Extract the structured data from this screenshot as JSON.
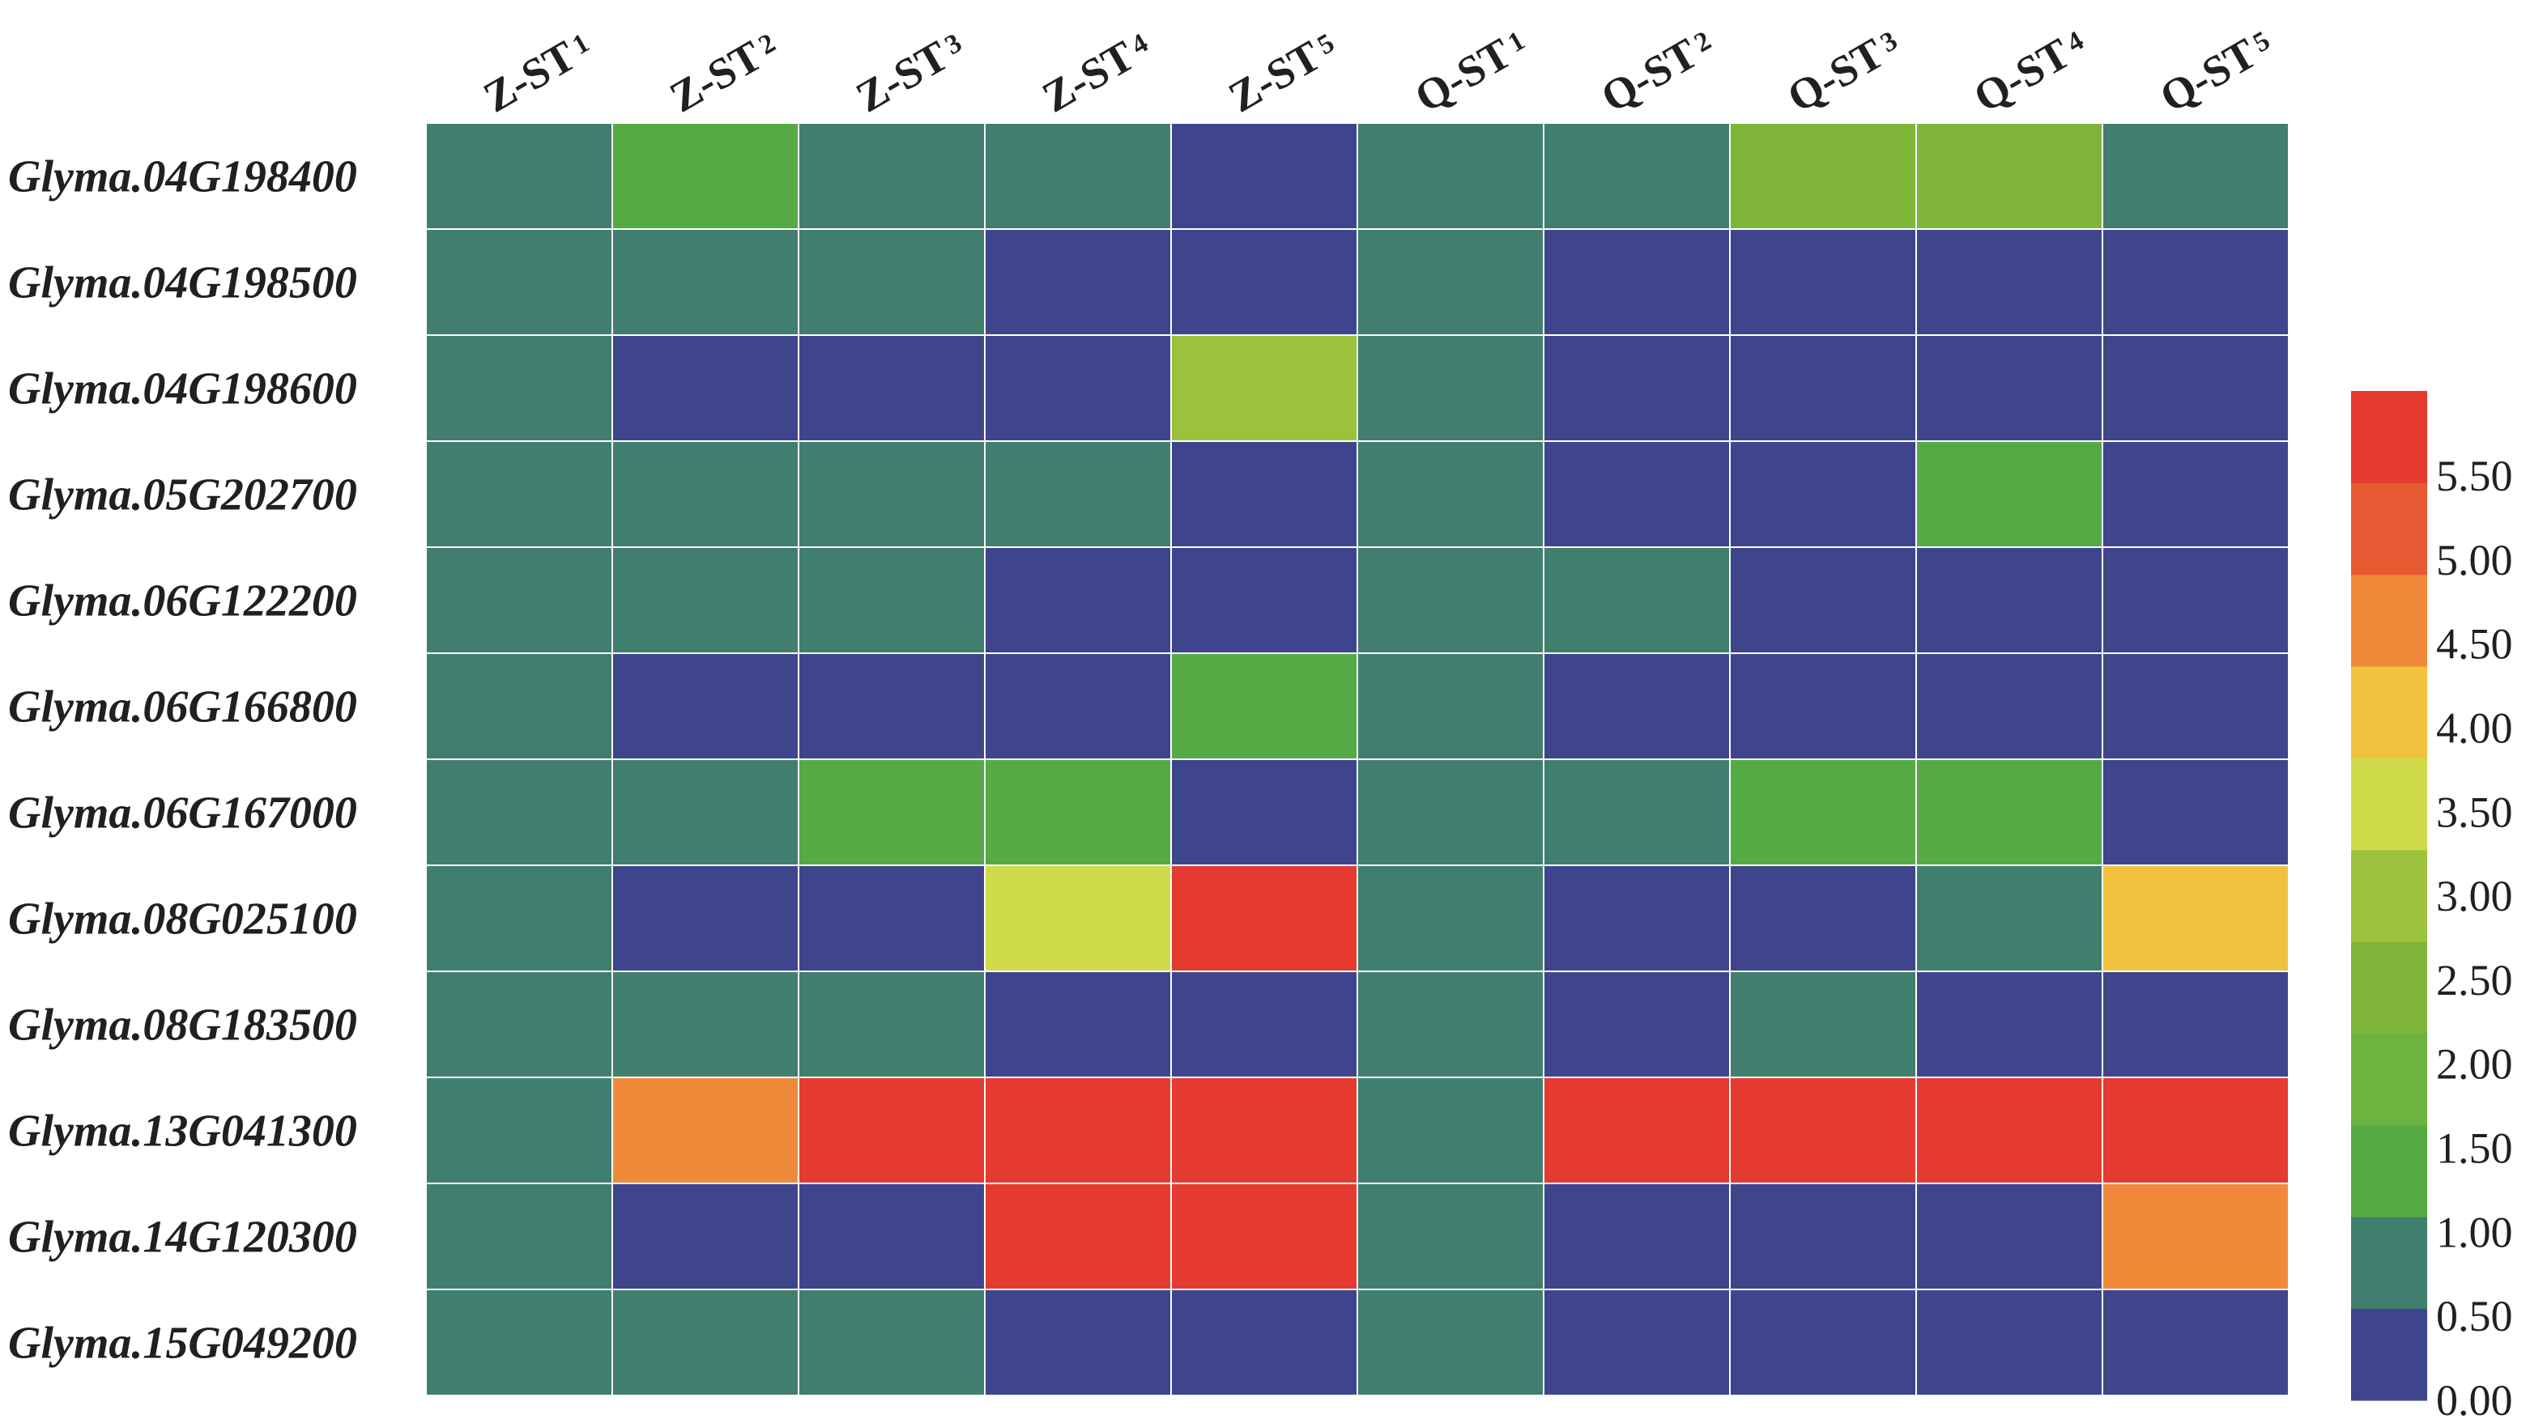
{
  "chart_data": {
    "type": "heatmap",
    "columns": [
      {
        "label": "Z-ST",
        "sub": "1"
      },
      {
        "label": "Z-ST",
        "sub": "2"
      },
      {
        "label": "Z-ST",
        "sub": "3"
      },
      {
        "label": "Z-ST",
        "sub": "4"
      },
      {
        "label": "Z-ST",
        "sub": "5"
      },
      {
        "label": "Q-ST",
        "sub": "1"
      },
      {
        "label": "Q-ST",
        "sub": "2"
      },
      {
        "label": "Q-ST",
        "sub": "3"
      },
      {
        "label": "Q-ST",
        "sub": "4"
      },
      {
        "label": "Q-ST",
        "sub": "5"
      }
    ],
    "rows": [
      "Glyma.04G198400",
      "Glyma.04G198500",
      "Glyma.04G198600",
      "Glyma.05G202700",
      "Glyma.06G122200",
      "Glyma.06G166800",
      "Glyma.06G167000",
      "Glyma.08G025100",
      "Glyma.08G183500",
      "Glyma.13G041300",
      "Glyma.14G120300",
      "Glyma.15G049200"
    ],
    "values": [
      [
        1.0,
        1.8,
        1.0,
        1.0,
        0.3,
        1.0,
        1.0,
        2.5,
        2.5,
        1.0
      ],
      [
        1.0,
        1.0,
        1.0,
        0.3,
        0.3,
        1.0,
        0.3,
        0.3,
        0.3,
        0.3
      ],
      [
        1.0,
        0.3,
        0.3,
        0.3,
        3.2,
        1.0,
        0.3,
        0.3,
        0.3,
        0.3
      ],
      [
        1.0,
        1.0,
        1.0,
        1.0,
        0.3,
        1.0,
        0.3,
        0.3,
        1.8,
        0.3
      ],
      [
        1.0,
        1.0,
        1.0,
        0.3,
        0.3,
        1.0,
        1.0,
        0.3,
        0.3,
        0.3
      ],
      [
        1.0,
        0.3,
        0.3,
        0.3,
        1.8,
        1.0,
        0.3,
        0.3,
        0.3,
        0.3
      ],
      [
        1.0,
        1.0,
        1.8,
        1.8,
        0.3,
        1.0,
        1.0,
        1.8,
        1.8,
        0.3
      ],
      [
        1.0,
        0.3,
        0.3,
        3.7,
        5.7,
        1.0,
        0.3,
        0.3,
        1.0,
        4.2
      ],
      [
        1.0,
        1.0,
        1.0,
        0.3,
        0.3,
        1.0,
        0.3,
        1.0,
        0.3,
        0.3
      ],
      [
        1.0,
        4.7,
        5.7,
        5.7,
        5.7,
        1.0,
        5.7,
        5.7,
        5.7,
        5.7
      ],
      [
        1.0,
        0.3,
        0.3,
        5.7,
        5.7,
        1.0,
        0.3,
        0.3,
        0.3,
        4.7
      ],
      [
        1.0,
        1.0,
        1.0,
        0.3,
        0.3,
        1.0,
        0.3,
        0.3,
        0.3,
        0.3
      ]
    ],
    "scale": {
      "ticks": [
        "0.00",
        "0.50",
        "1.00",
        "1.50",
        "2.00",
        "2.50",
        "3.00",
        "3.50",
        "4.00",
        "4.50",
        "5.00",
        "5.50"
      ],
      "bins": [
        {
          "min": 0.0,
          "max": 1.0,
          "color": "#3f458c"
        },
        {
          "min": 1.0,
          "max": 1.5,
          "color": "#407e6e"
        },
        {
          "min": 1.5,
          "max": 2.0,
          "color": "#55aa44"
        },
        {
          "min": 2.0,
          "max": 2.5,
          "color": "#6db33f"
        },
        {
          "min": 2.5,
          "max": 3.0,
          "color": "#7fb63a"
        },
        {
          "min": 3.0,
          "max": 3.5,
          "color": "#9cc23d"
        },
        {
          "min": 3.5,
          "max": 4.0,
          "color": "#cfdb4b"
        },
        {
          "min": 4.0,
          "max": 4.5,
          "color": "#f2c23f"
        },
        {
          "min": 4.5,
          "max": 5.0,
          "color": "#f08a3a"
        },
        {
          "min": 5.0,
          "max": 5.5,
          "color": "#e65a33"
        },
        {
          "min": 5.5,
          "max": 6.0,
          "color": "#e53a2f"
        }
      ]
    },
    "legend_placement": "right"
  }
}
